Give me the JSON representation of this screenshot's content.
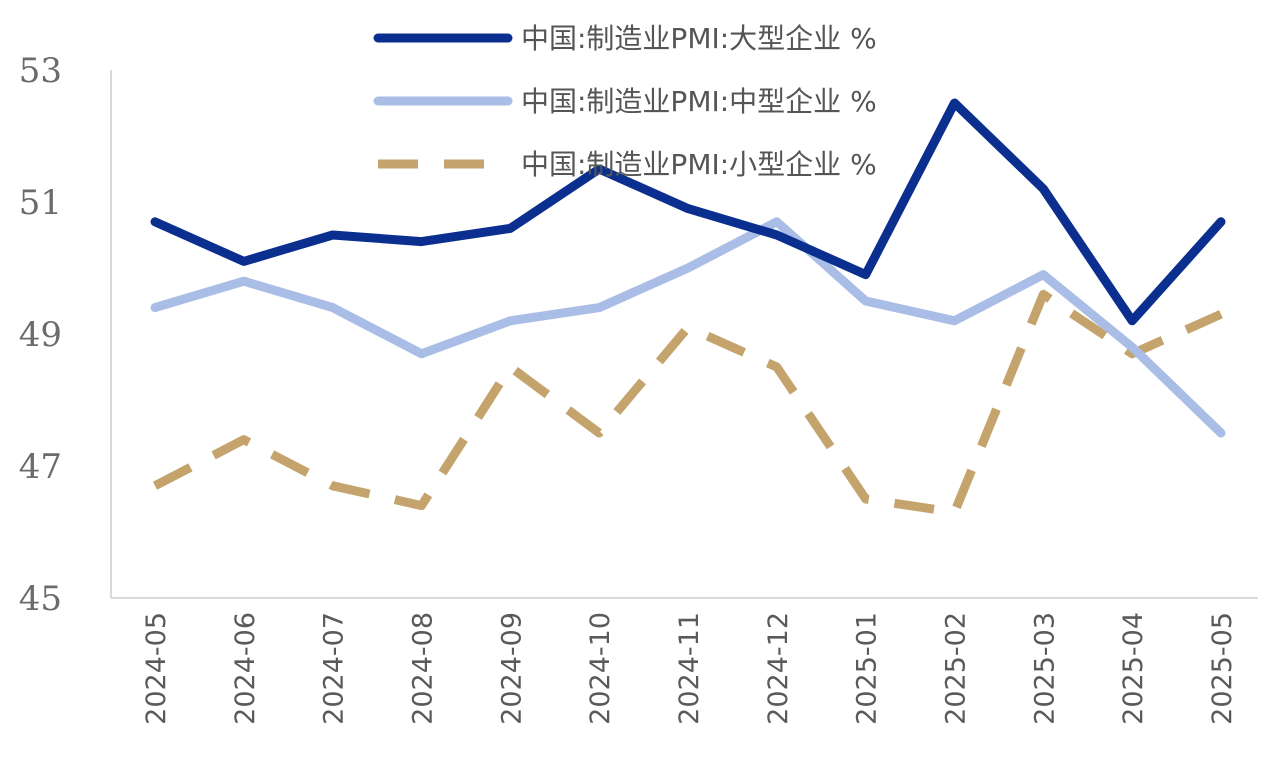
{
  "chart_data": {
    "type": "line",
    "title": "",
    "xlabel": "",
    "ylabel": "",
    "ylim": [
      45,
      53
    ],
    "yticks": [
      "45",
      "47",
      "49",
      "51",
      "53"
    ],
    "categories": [
      "2024-05",
      "2024-06",
      "2024-07",
      "2024-08",
      "2024-09",
      "2024-10",
      "2024-11",
      "2024-12",
      "2025-01",
      "2025-02",
      "2025-03",
      "2025-04",
      "2025-05"
    ],
    "series": [
      {
        "name": "中国:制造业PMI:大型企业 %",
        "color": "#0b2f8f",
        "style": "solid",
        "values": [
          50.7,
          50.1,
          50.5,
          50.4,
          50.6,
          51.5,
          50.9,
          50.5,
          49.9,
          52.5,
          51.2,
          49.2,
          50.7
        ]
      },
      {
        "name": "中国:制造业PMI:中型企业 %",
        "color": "#a9bde6",
        "style": "solid",
        "values": [
          49.4,
          49.8,
          49.4,
          48.7,
          49.2,
          49.4,
          50.0,
          50.7,
          49.5,
          49.2,
          49.9,
          48.8,
          47.5
        ]
      },
      {
        "name": "中国:制造业PMI:小型企业 %",
        "color": "#c4a36d",
        "style": "dashed",
        "values": [
          46.7,
          47.4,
          46.7,
          46.4,
          48.5,
          47.5,
          49.1,
          48.5,
          46.5,
          46.3,
          49.6,
          48.7,
          49.3
        ]
      }
    ],
    "legend_position": "top",
    "grid": false
  }
}
